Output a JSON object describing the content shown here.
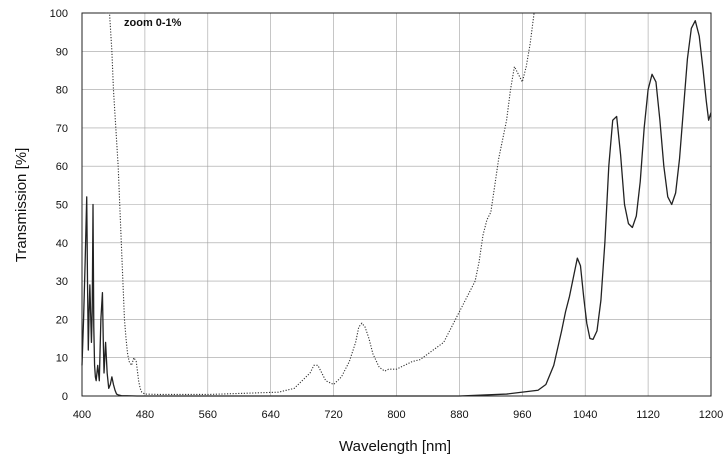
{
  "chart_data": {
    "type": "line",
    "xlabel": "Wavelength [nm]",
    "ylabel": "Transmission [%]",
    "annotation": "zoom 0-1%",
    "xlim": [
      400,
      1200
    ],
    "ylim": [
      0,
      100
    ],
    "xticks": [
      400,
      480,
      560,
      640,
      720,
      800,
      880,
      960,
      1040,
      1120,
      1200
    ],
    "yticks": [
      0,
      10,
      20,
      30,
      40,
      50,
      60,
      70,
      80,
      90,
      100
    ],
    "grid": true,
    "series": [
      {
        "style": "solid",
        "x": [
          400,
          402,
          404,
          406,
          407,
          408,
          409,
          410,
          412,
          413,
          414,
          415,
          416,
          417,
          418,
          419,
          420,
          422,
          424,
          426,
          427,
          428,
          429,
          430,
          432,
          434,
          436,
          438,
          440,
          442,
          444,
          446,
          448,
          450,
          470,
          500,
          560,
          640,
          720,
          800,
          880,
          940,
          980,
          990,
          1000,
          1010,
          1015,
          1020,
          1025,
          1030,
          1034,
          1038,
          1042,
          1046,
          1050,
          1055,
          1060,
          1065,
          1070,
          1075,
          1080,
          1085,
          1090,
          1095,
          1100,
          1105,
          1110,
          1115,
          1120,
          1125,
          1130,
          1135,
          1140,
          1145,
          1150,
          1155,
          1160,
          1165,
          1170,
          1175,
          1180,
          1185,
          1190,
          1194,
          1197,
          1200
        ],
        "y": [
          8,
          20,
          35,
          52,
          30,
          12,
          22,
          29,
          14,
          22,
          50,
          18,
          8,
          5,
          4,
          6,
          8,
          4,
          20,
          27,
          15,
          6,
          10,
          14,
          6,
          2,
          3,
          5,
          3,
          1.5,
          0.5,
          0.3,
          0.2,
          0.1,
          0,
          0,
          0,
          0,
          0,
          0,
          0,
          0.5,
          1.5,
          3,
          8,
          17,
          22,
          26,
          31,
          36,
          34,
          26,
          19,
          15,
          14.8,
          17,
          25,
          40,
          60,
          72,
          73,
          63,
          50,
          45,
          44,
          47,
          56,
          70,
          80,
          84,
          82,
          72,
          60,
          52,
          50,
          53,
          62,
          75,
          88,
          96,
          98,
          94,
          85,
          77,
          72,
          74
        ]
      },
      {
        "style": "dotted",
        "x": [
          430,
          435,
          438,
          440,
          443,
          446,
          448,
          450,
          452,
          454,
          456,
          458,
          460,
          463,
          466,
          469,
          472,
          474,
          476,
          480,
          500,
          560,
          620,
          650,
          670,
          680,
          690,
          695,
          700,
          705,
          710,
          720,
          730,
          740,
          748,
          752,
          756,
          760,
          765,
          770,
          778,
          785,
          790,
          800,
          810,
          820,
          830,
          840,
          850,
          860,
          870,
          880,
          890,
          900,
          905,
          910,
          915,
          920,
          930,
          940,
          945,
          950,
          955,
          960,
          965,
          970,
          975
        ],
        "y": [
          100,
          100,
          90,
          80,
          70,
          60,
          50,
          40,
          30,
          20,
          15,
          11,
          9,
          8,
          10,
          9,
          4,
          2,
          1,
          0.5,
          0.4,
          0.4,
          0.8,
          1,
          2,
          4,
          6,
          8,
          8,
          6,
          4,
          3,
          5,
          9,
          14,
          18,
          19,
          18,
          15,
          11,
          7.5,
          6.5,
          7,
          7,
          8,
          9,
          9.5,
          11,
          12.5,
          14,
          18,
          22,
          26,
          30,
          35,
          42,
          46,
          48,
          62,
          72,
          80,
          86,
          84,
          82,
          86,
          92,
          100
        ]
      }
    ]
  }
}
